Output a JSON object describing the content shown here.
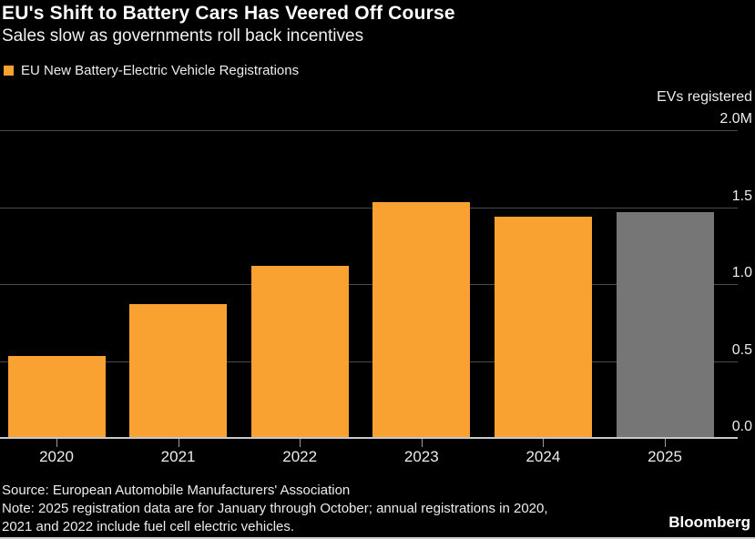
{
  "header": {
    "title": "EU's Shift to Battery Cars Has Veered Off Course",
    "subtitle": "Sales slow as governments roll back incentives"
  },
  "legend": {
    "label": "EU New Battery-Electric Vehicle Registrations",
    "swatch_color": "#f9a231"
  },
  "axis": {
    "title": "EVs registered"
  },
  "chart_data": {
    "type": "bar",
    "title": "EU's Shift to Battery Cars Has Veered Off Course",
    "subtitle": "Sales slow as governments roll back incentives",
    "legend_entries": [
      "EU New Battery-Electric Vehicle Registrations"
    ],
    "legend_position": "top-left",
    "y_axis_title": "EVs registered",
    "unit": "millions",
    "categories": [
      "2020",
      "2021",
      "2022",
      "2023",
      "2024",
      "2025"
    ],
    "values": [
      0.53,
      0.87,
      1.12,
      1.53,
      1.44,
      1.47
    ],
    "bar_colors": [
      "#f9a231",
      "#f9a231",
      "#f9a231",
      "#f9a231",
      "#f9a231",
      "#767676"
    ],
    "ylim": [
      0,
      2.0
    ],
    "yticks": [
      0,
      0.5,
      1.0,
      1.5,
      2.0
    ],
    "ytick_labels": [
      "0.0",
      "0.5",
      "1.0",
      "1.5",
      "2.0M"
    ],
    "ytick_side": "right",
    "grid": true
  },
  "footer": {
    "source": "Source: European Automobile Manufacturers' Association",
    "note_lines": [
      "Note: 2025 registration data are for January through October; annual registrations in 2020,",
      "2021 and 2022 include fuel cell electric vehicles."
    ],
    "brand": "Bloomberg"
  },
  "colors": {
    "background": "#000000",
    "bar_orange": "#f9a231",
    "bar_gray": "#767676",
    "gridline": "#4a4a4a",
    "axis_line": "#c3c9cf",
    "tick_mark": "#9b9b9b",
    "text": "#ededed"
  }
}
